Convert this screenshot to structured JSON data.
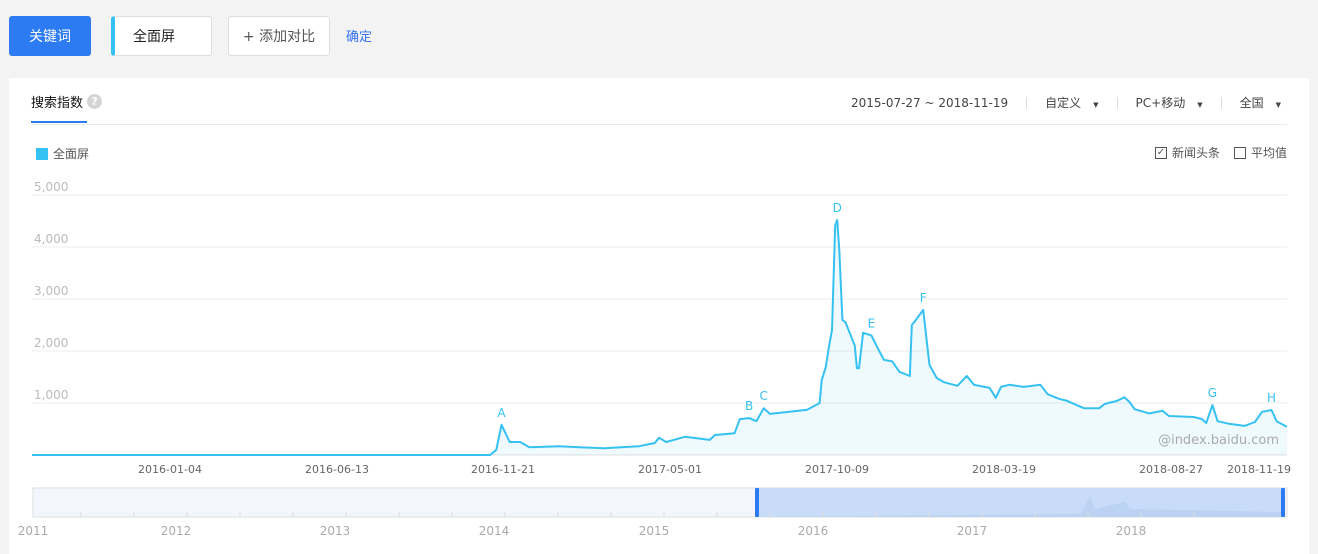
{
  "toolbar": {
    "keyword_label": "关键词",
    "term": "全面屏",
    "add_compare": "+ 添加对比",
    "confirm": "确定"
  },
  "panel": {
    "tab": "搜索指数",
    "help_icon": "?",
    "date_range": "2015-07-27 ~ 2018-11-19",
    "period": "自定义",
    "device": "PC+移动",
    "region": "全国",
    "news_label": "新闻头条",
    "news_checked": true,
    "avg_label": "平均值",
    "avg_checked": false,
    "watermark": "@index.baidu.com"
  },
  "chart_data": {
    "type": "area",
    "legend": [
      {
        "name": "全面屏",
        "color": "#35c1f1"
      }
    ],
    "xlim": [
      "2015-07-27",
      "2018-11-19"
    ],
    "ylim": [
      0,
      5000
    ],
    "yticks": [
      "5,000",
      "4,000",
      "3,000",
      "2,000",
      "1,000"
    ],
    "xticks": [
      "2016-01-04",
      "2016-06-13",
      "2016-11-21",
      "2017-05-01",
      "2017-10-09",
      "2018-03-19",
      "2018-08-27",
      "2018-11-19"
    ],
    "grid": true,
    "series": [
      {
        "name": "全面屏",
        "points": [
          [
            "2015-07-27",
            0
          ],
          [
            "2016-10-11",
            0
          ],
          [
            "2016-10-17",
            100
          ],
          [
            "2016-10-22",
            580
          ],
          [
            "2016-10-30",
            250
          ],
          [
            "2016-11-09",
            250
          ],
          [
            "2016-11-18",
            150
          ],
          [
            "2016-12-17",
            170
          ],
          [
            "2017-01-05",
            150
          ],
          [
            "2017-01-29",
            130
          ],
          [
            "2017-03-04",
            170
          ],
          [
            "2017-03-19",
            230
          ],
          [
            "2017-03-23",
            330
          ],
          [
            "2017-03-30",
            250
          ],
          [
            "2017-04-17",
            350
          ],
          [
            "2017-05-11",
            290
          ],
          [
            "2017-05-16",
            385
          ],
          [
            "2017-06-04",
            420
          ],
          [
            "2017-06-09",
            690
          ],
          [
            "2017-06-18",
            710
          ],
          [
            "2017-06-25",
            650
          ],
          [
            "2017-07-02",
            900
          ],
          [
            "2017-07-08",
            790
          ],
          [
            "2017-07-27",
            830
          ],
          [
            "2017-08-13",
            870
          ],
          [
            "2017-08-25",
            1000
          ],
          [
            "2017-08-27",
            1440
          ],
          [
            "2017-08-31",
            1690
          ],
          [
            "2017-09-03",
            2080
          ],
          [
            "2017-09-06",
            2400
          ],
          [
            "2017-09-09",
            4420
          ],
          [
            "2017-09-11",
            4520
          ],
          [
            "2017-09-13",
            3940
          ],
          [
            "2017-09-16",
            2600
          ],
          [
            "2017-09-19",
            2550
          ],
          [
            "2017-09-23",
            2350
          ],
          [
            "2017-09-28",
            2100
          ],
          [
            "2017-09-30",
            1670
          ],
          [
            "2017-10-02",
            1670
          ],
          [
            "2017-10-06",
            2350
          ],
          [
            "2017-10-14",
            2300
          ],
          [
            "2017-10-20",
            2060
          ],
          [
            "2017-10-26",
            1830
          ],
          [
            "2017-11-03",
            1800
          ],
          [
            "2017-11-10",
            1600
          ],
          [
            "2017-11-20",
            1520
          ],
          [
            "2017-11-22",
            2500
          ],
          [
            "2017-11-26",
            2600
          ],
          [
            "2017-12-03",
            2790
          ],
          [
            "2017-12-09",
            1730
          ],
          [
            "2017-12-16",
            1480
          ],
          [
            "2017-12-23",
            1400
          ],
          [
            "2018-01-05",
            1330
          ],
          [
            "2018-01-14",
            1520
          ],
          [
            "2018-01-21",
            1350
          ],
          [
            "2018-02-05",
            1290
          ],
          [
            "2018-02-11",
            1100
          ],
          [
            "2018-02-16",
            1310
          ],
          [
            "2018-02-24",
            1350
          ],
          [
            "2018-03-10",
            1310
          ],
          [
            "2018-03-26",
            1350
          ],
          [
            "2018-04-02",
            1170
          ],
          [
            "2018-04-13",
            1080
          ],
          [
            "2018-04-21",
            1040
          ],
          [
            "2018-05-07",
            900
          ],
          [
            "2018-05-22",
            900
          ],
          [
            "2018-05-27",
            980
          ],
          [
            "2018-06-08",
            1040
          ],
          [
            "2018-06-15",
            1110
          ],
          [
            "2018-06-20",
            1020
          ],
          [
            "2018-06-25",
            880
          ],
          [
            "2018-07-09",
            800
          ],
          [
            "2018-07-22",
            850
          ],
          [
            "2018-07-28",
            750
          ],
          [
            "2018-08-21",
            730
          ],
          [
            "2018-08-29",
            690
          ],
          [
            "2018-09-02",
            615
          ],
          [
            "2018-09-08",
            960
          ],
          [
            "2018-09-13",
            650
          ],
          [
            "2018-09-24",
            600
          ],
          [
            "2018-10-09",
            560
          ],
          [
            "2018-10-19",
            635
          ],
          [
            "2018-10-26",
            830
          ],
          [
            "2018-11-04",
            865
          ],
          [
            "2018-11-09",
            650
          ],
          [
            "2018-11-19",
            540
          ]
        ]
      }
    ],
    "annotations": [
      {
        "label": "A",
        "date": "2016-10-22",
        "value": 580
      },
      {
        "label": "B",
        "date": "2017-06-18",
        "value": 710
      },
      {
        "label": "C",
        "date": "2017-07-02",
        "value": 900
      },
      {
        "label": "D",
        "date": "2017-09-11",
        "value": 4520
      },
      {
        "label": "E",
        "date": "2017-10-14",
        "value": 2300
      },
      {
        "label": "F",
        "date": "2017-12-03",
        "value": 2790
      },
      {
        "label": "G",
        "date": "2018-09-08",
        "value": 960
      },
      {
        "label": "H",
        "date": "2018-11-04",
        "value": 865
      }
    ],
    "navigator": {
      "years": [
        "2011",
        "2012",
        "2013",
        "2014",
        "2015",
        "2016",
        "2017",
        "2018"
      ],
      "selection": [
        "2015-07-27",
        "2018-11-19"
      ]
    }
  }
}
